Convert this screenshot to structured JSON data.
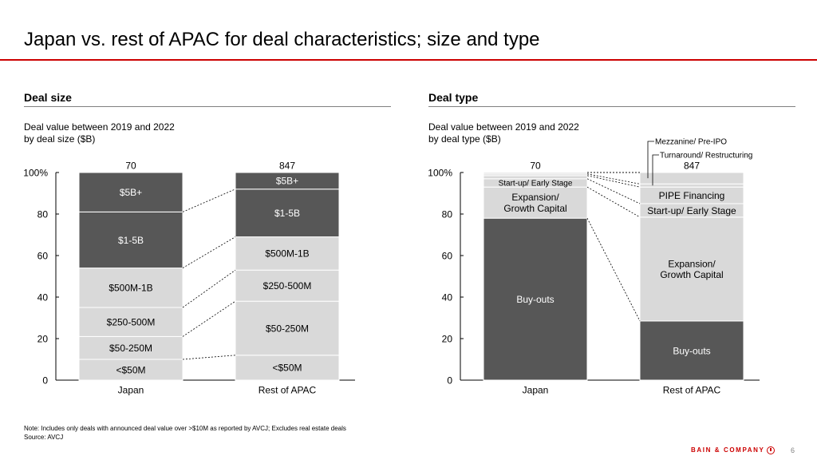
{
  "slide": {
    "title": "Japan vs. rest of APAC for deal characteristics; size and type",
    "note": "Note: Includes only deals with announced deal value over >$10M as reported by AVCJ; Excludes real estate deals",
    "source": "Source: AVCJ",
    "logo_text": "BAIN & COMPANY",
    "page_number": "6"
  },
  "colors": {
    "dark": "#575757",
    "light": "#d9d9d9",
    "accent": "#cc0000"
  },
  "chart_data": [
    {
      "type": "bar",
      "stacked": true,
      "normalized": true,
      "section_title": "Deal size",
      "title": "Deal value between 2019 and 2022\nby deal size ($B)",
      "categories": [
        "Japan",
        "Rest of APAC"
      ],
      "totals": [
        "70",
        "847"
      ],
      "ylim": [
        0,
        100
      ],
      "yticks": [
        "0",
        "20",
        "40",
        "60",
        "80",
        "100%"
      ],
      "series": [
        {
          "name": "<$50M",
          "color": "light",
          "values": [
            10,
            12
          ]
        },
        {
          "name": "$50-250M",
          "color": "light",
          "values": [
            11,
            26
          ]
        },
        {
          "name": "$250-500M",
          "color": "light",
          "values": [
            14,
            15
          ]
        },
        {
          "name": "$500M-1B",
          "color": "light",
          "values": [
            19,
            16
          ]
        },
        {
          "name": "$1-5B",
          "color": "dark",
          "values": [
            27,
            23
          ]
        },
        {
          "name": "$5B+",
          "color": "dark",
          "values": [
            19,
            8
          ]
        }
      ]
    },
    {
      "type": "bar",
      "stacked": true,
      "normalized": true,
      "section_title": "Deal type",
      "title": "Deal value between 2019 and 2022\nby deal type ($B)",
      "categories": [
        "Japan",
        "Rest of APAC"
      ],
      "totals": [
        "70",
        "847"
      ],
      "ylim": [
        0,
        100
      ],
      "yticks": [
        "0",
        "20",
        "40",
        "60",
        "80",
        "100%"
      ],
      "series": [
        {
          "name": "Buy-outs",
          "color": "dark",
          "values": [
            78,
            28.5
          ]
        },
        {
          "name": "Expansion/\nGrowth Capital",
          "color": "light",
          "values": [
            15,
            50
          ]
        },
        {
          "name": "Start-up/ Early Stage",
          "color": "light",
          "values": [
            4,
            6.5
          ]
        },
        {
          "name": "PIPE Financing",
          "color": "light",
          "values": [
            1.5,
            8
          ]
        },
        {
          "name": "Turnaround/ Restructuring",
          "color": "light",
          "values": [
            0.8,
            1.5
          ],
          "callout": true
        },
        {
          "name": "Mezzanine/ Pre-IPO",
          "color": "light",
          "values": [
            0.7,
            5.5
          ],
          "callout": true
        }
      ],
      "inside_labels": {
        "0": [
          "Buy-outs",
          "Expansion/\nGrowth Capital",
          "Start-up/ Early Stage",
          "",
          "",
          ""
        ],
        "1": [
          "Buy-outs",
          "Expansion/\nGrowth Capital",
          "Start-up/ Early Stage",
          "PIPE Financing",
          "",
          ""
        ]
      }
    }
  ]
}
